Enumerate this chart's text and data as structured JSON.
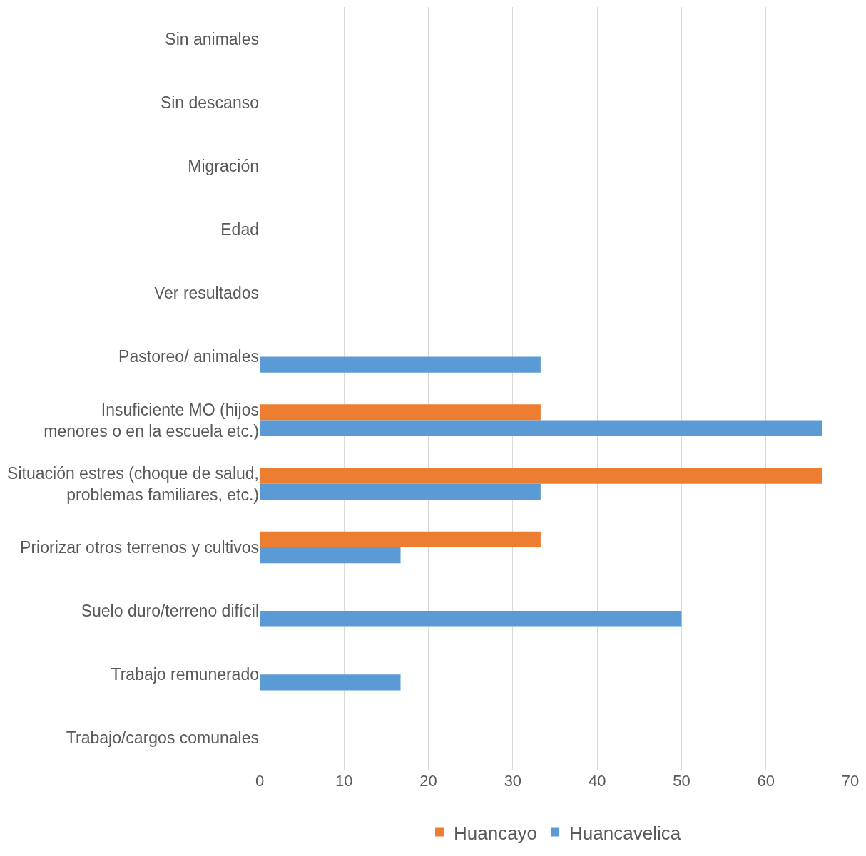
{
  "chart_data": {
    "type": "bar",
    "orientation": "horizontal",
    "categories": [
      "Sin animales",
      "Sin descanso",
      "Migración",
      "Edad",
      "Ver resultados",
      "Pastoreo/ animales",
      "Insuficiente MO (hijos\nmenores o en la escuela etc.)",
      "Situación estres (choque de salud,\nproblemas familiares, etc.)",
      "Priorizar otros terrenos y cultivos",
      "Suelo duro/terreno difícil",
      "Trabajo remunerado",
      "Trabajo/cargos comunales"
    ],
    "series": [
      {
        "name": "Huancayo",
        "color": "#ed7d31",
        "values": [
          null,
          null,
          null,
          null,
          null,
          null,
          33.3,
          66.7,
          33.3,
          null,
          null,
          null
        ]
      },
      {
        "name": "Huancavelica",
        "color": "#5b9bd5",
        "values": [
          null,
          null,
          null,
          null,
          null,
          33.3,
          66.7,
          33.3,
          16.7,
          50,
          16.7,
          null
        ]
      }
    ],
    "xlim": [
      0,
      70
    ],
    "xticks": [
      0,
      10,
      20,
      30,
      40,
      50,
      60,
      70
    ],
    "grid": "x",
    "legend": "bottom"
  }
}
